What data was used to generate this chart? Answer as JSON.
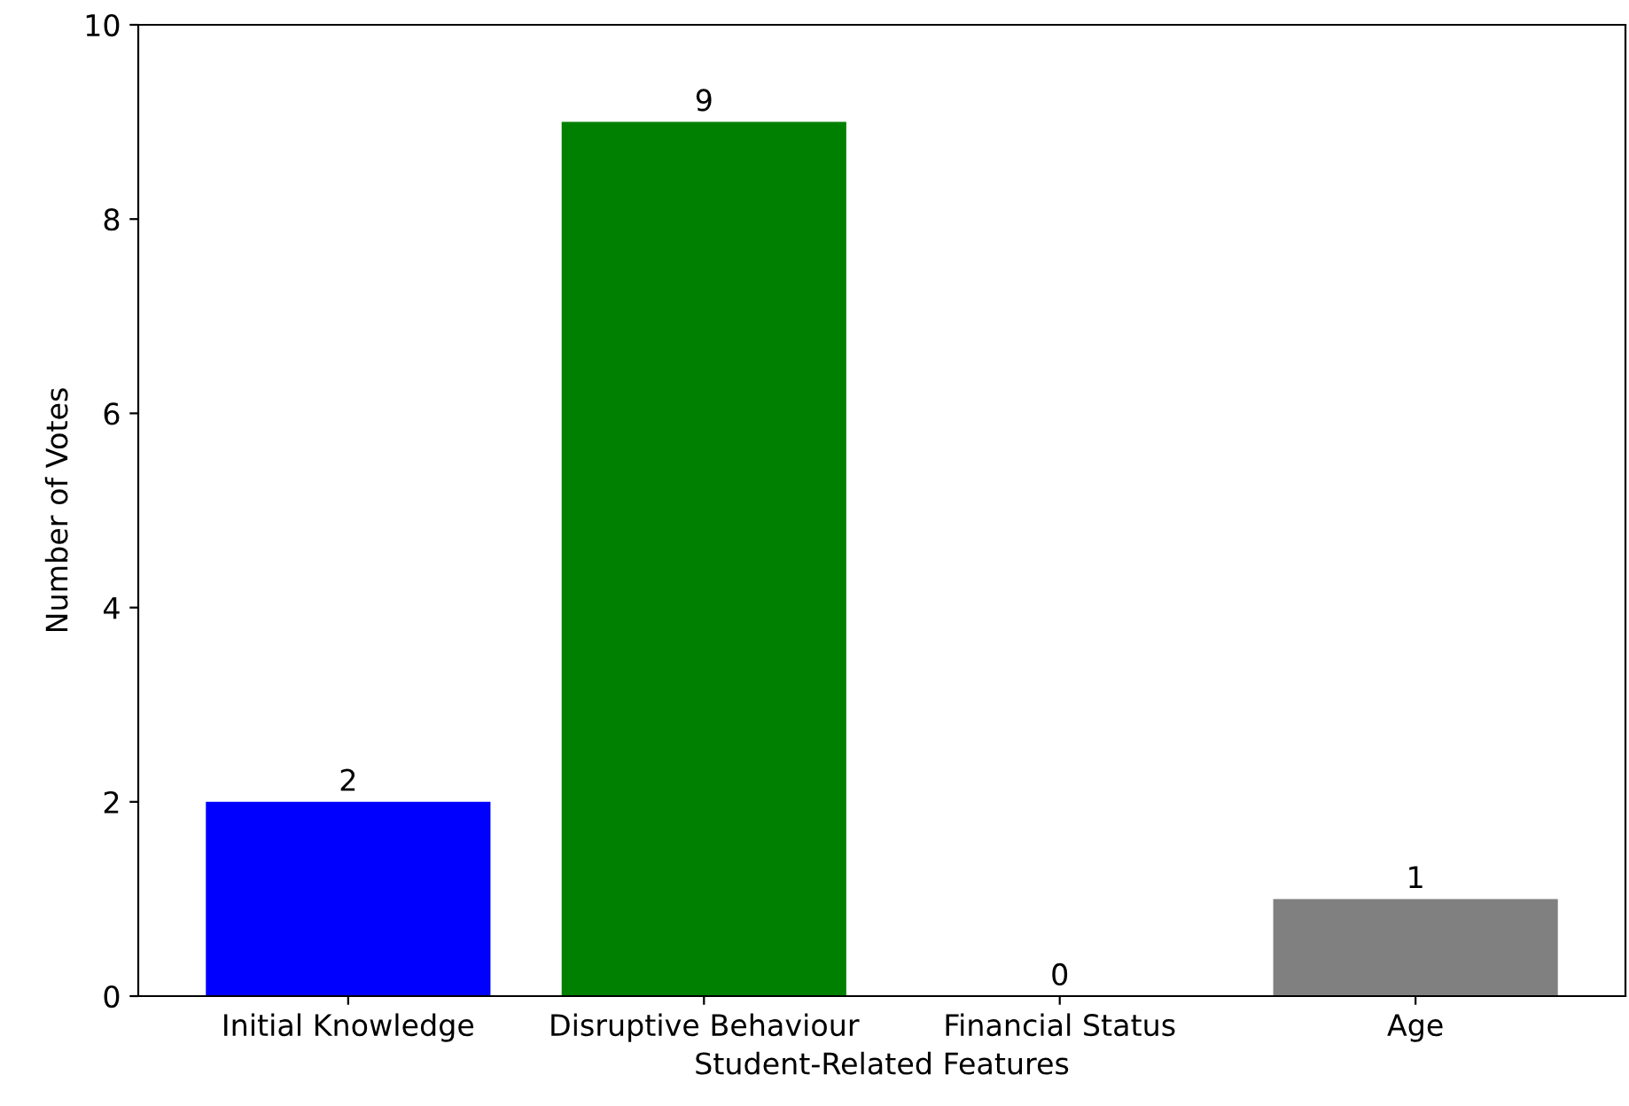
{
  "chart_data": {
    "type": "bar",
    "xlabel": "Student-Related Features",
    "ylabel": "Number of Votes",
    "categories": [
      "Initial Knowledge",
      "Disruptive Behaviour",
      "Financial Status",
      "Age"
    ],
    "values": [
      2,
      9,
      0,
      1
    ],
    "colors": [
      "#0000ff",
      "#008000",
      "#ff0000",
      "#808080"
    ],
    "ylim": [
      0,
      10
    ],
    "yticks": [
      0,
      2,
      4,
      6,
      8,
      10
    ],
    "data_labels": true,
    "grid": false,
    "legend": false
  }
}
